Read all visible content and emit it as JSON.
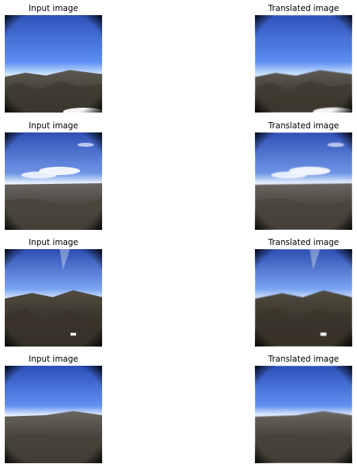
{
  "figure": {
    "rows": [
      {
        "input_title": "Input image",
        "output_title": "Translated image",
        "scene": "ridge-sky",
        "colors": {
          "sky_top": "#2f52b8",
          "sky_mid": "#5b8ef0",
          "horizon": "#cfe6ff",
          "ground_top": "#5d5a52",
          "ground_bottom": "#2d2a20"
        }
      },
      {
        "input_title": "Input image",
        "output_title": "Translated image",
        "scene": "clouds-rocks",
        "colors": {
          "sky_top": "#3050b6",
          "sky_mid": "#6f95e6",
          "horizon": "#e9f1ff",
          "ground_top": "#6a6560",
          "ground_bottom": "#2a2620"
        }
      },
      {
        "input_title": "Input image",
        "output_title": "Translated image",
        "scene": "mountain-range",
        "colors": {
          "sky_top": "#2d4db0",
          "sky_mid": "#7aa4f2",
          "horizon": "#d9e8ff",
          "ground_top": "#514b40",
          "ground_bottom": "#262218"
        }
      },
      {
        "input_title": "Input image",
        "output_title": "Translated image",
        "scene": "plain-rocks",
        "colors": {
          "sky_top": "#2c4fb5",
          "sky_mid": "#5f8ff0",
          "horizon": "#e6f0ff",
          "ground_top": "#6b665e",
          "ground_bottom": "#25211b"
        }
      }
    ]
  }
}
